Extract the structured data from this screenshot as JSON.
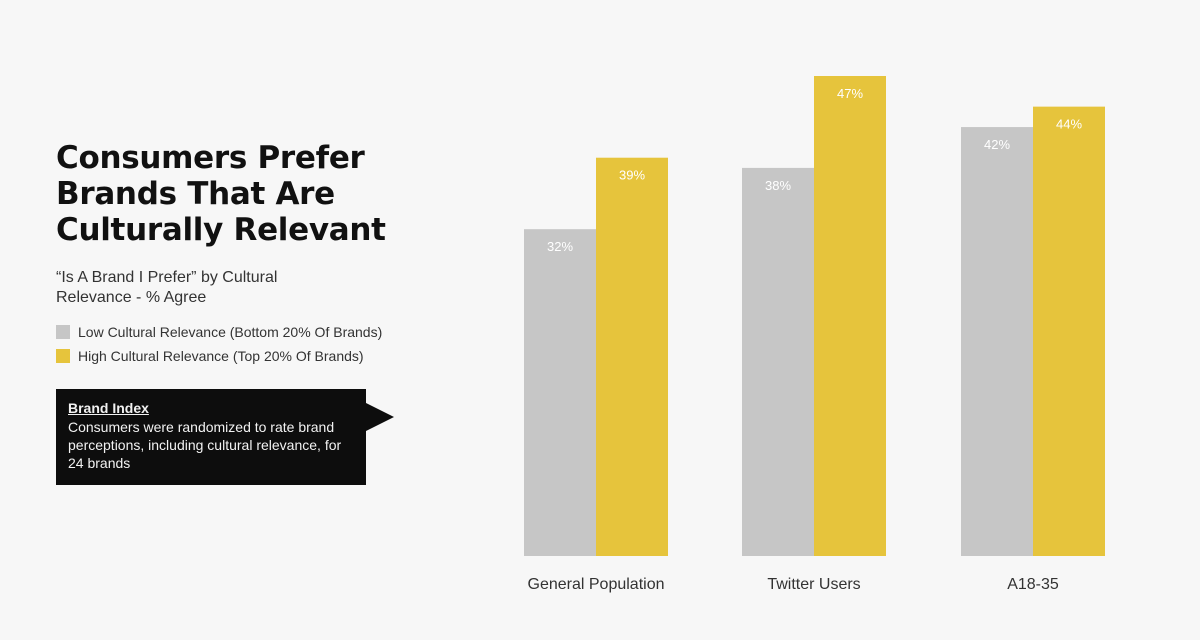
{
  "title": "Consumers Prefer\nBrands That Are\nCulturally Relevant",
  "subtitle": "“Is A Brand I Prefer” by Cultural Relevance - % Agree",
  "legend": [
    {
      "label": "Low Cultural Relevance (Bottom 20% Of Brands)",
      "color": "#c6c6c6"
    },
    {
      "label": "High Cultural Relevance (Top 20% Of Brands)",
      "color": "#e6c43c"
    }
  ],
  "callout": {
    "title": "Brand Index",
    "body": "Consumers were randomized to rate brand perceptions, including cultural relevance, for 24 brands"
  },
  "chart_data": {
    "type": "bar",
    "categories": [
      "General Population",
      "Twitter Users",
      "A18-35"
    ],
    "series": [
      {
        "name": "Low Cultural Relevance (Bottom 20% Of Brands)",
        "values": [
          32,
          38,
          42
        ],
        "labels": [
          "32%",
          "38%",
          "42%"
        ],
        "color": "#c6c6c6"
      },
      {
        "name": "High Cultural Relevance (Top 20% Of Brands)",
        "values": [
          39,
          47,
          44
        ],
        "labels": [
          "39%",
          "47%",
          "44%"
        ],
        "color": "#e6c43c"
      }
    ],
    "ylim": [
      0,
      47
    ]
  }
}
